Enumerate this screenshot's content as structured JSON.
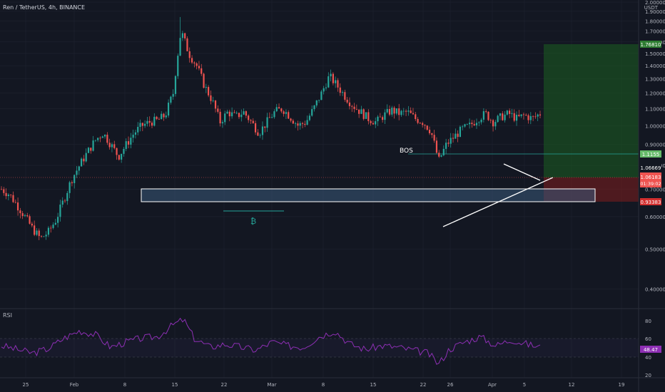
{
  "header": {
    "title": "Ren / TetherUS, 4h, BINANCE",
    "currency": "USDT"
  },
  "colors": {
    "background": "#131722",
    "grid": "#1f2330",
    "up": "#26a69a",
    "down": "#ef5350",
    "rsi": "#8e2fb5",
    "zone": "#5a7fa6",
    "target": "#1b5e20",
    "stop": "#7f1d1d"
  },
  "annotations": {
    "bos_label": "BOS",
    "bitcoin_symbol": "₿"
  },
  "rsi": {
    "label": "RSI",
    "ticks": [
      "80",
      "60",
      "40",
      "20"
    ],
    "current": "48.47"
  },
  "price_badges": {
    "target": "1.76810",
    "bos_level": "1.1155",
    "current_a": "1.06669",
    "current_b": "1.06183",
    "countdown": "01:39:02",
    "stop": "0.93383"
  },
  "chart_data": {
    "type": "candlestick",
    "title": "Ren / TetherUS, 4h, BINANCE",
    "ylabel": "USDT",
    "y_ticks": [
      "2.00000",
      "1.90000",
      "1.80000",
      "1.70000",
      "1.60000",
      "1.50000",
      "1.40000",
      "1.30000",
      "1.20000",
      "1.10000",
      "1.00000",
      "0.90000",
      "0.80000",
      "0.70000",
      "0.60000",
      "0.50000",
      "0.40000"
    ],
    "x_ticks": [
      "25",
      "Feb",
      "8",
      "15",
      "22",
      "Mar",
      "8",
      "15",
      "22",
      "26",
      "Apr",
      "5",
      "12",
      "19"
    ],
    "ylim": [
      0.4,
      2.0
    ],
    "scale": "log",
    "grid": true,
    "key_prices": {
      "high_spike": 1.84,
      "support_zone": [
        0.93,
        0.99
      ],
      "bos_level": 1.1155,
      "target": 1.7681,
      "entry": 1.0618,
      "stop": 0.9338,
      "last": 1.0618
    },
    "price_path": [
      [
        0,
        0.7
      ],
      [
        3,
        0.68
      ],
      [
        6,
        0.64
      ],
      [
        9,
        0.6
      ],
      [
        12,
        0.56
      ],
      [
        15,
        0.53
      ],
      [
        18,
        0.55
      ],
      [
        21,
        0.59
      ],
      [
        24,
        0.66
      ],
      [
        27,
        0.74
      ],
      [
        30,
        0.8
      ],
      [
        33,
        0.86
      ],
      [
        36,
        0.92
      ],
      [
        39,
        0.96
      ],
      [
        42,
        0.9
      ],
      [
        45,
        0.84
      ],
      [
        48,
        0.9
      ],
      [
        51,
        0.96
      ],
      [
        54,
        1.0
      ],
      [
        57,
        1.02
      ],
      [
        60,
        1.03
      ],
      [
        63,
        1.06
      ],
      [
        66,
        1.2
      ],
      [
        69,
        1.7
      ],
      [
        72,
        1.5
      ],
      [
        75,
        1.4
      ],
      [
        78,
        1.25
      ],
      [
        81,
        1.15
      ],
      [
        84,
        1.02
      ],
      [
        87,
        1.08
      ],
      [
        90,
        1.05
      ],
      [
        93,
        1.08
      ],
      [
        96,
        1.02
      ],
      [
        99,
        0.96
      ],
      [
        102,
        1.02
      ],
      [
        105,
        1.08
      ],
      [
        108,
        1.1
      ],
      [
        111,
        1.05
      ],
      [
        114,
        1.0
      ],
      [
        117,
        1.02
      ],
      [
        120,
        1.1
      ],
      [
        123,
        1.2
      ],
      [
        126,
        1.32
      ],
      [
        129,
        1.25
      ],
      [
        132,
        1.18
      ],
      [
        135,
        1.12
      ],
      [
        138,
        1.08
      ],
      [
        141,
        1.04
      ],
      [
        144,
        1.02
      ],
      [
        147,
        1.06
      ],
      [
        150,
        1.09
      ],
      [
        153,
        1.07
      ],
      [
        156,
        1.08
      ],
      [
        159,
        1.04
      ],
      [
        162,
        1.02
      ],
      [
        165,
        0.97
      ],
      [
        168,
        0.82
      ],
      [
        171,
        0.9
      ],
      [
        174,
        0.94
      ],
      [
        177,
        0.98
      ],
      [
        180,
        1.0
      ],
      [
        183,
        1.04
      ],
      [
        186,
        1.07
      ],
      [
        189,
        1.02
      ],
      [
        192,
        1.05
      ],
      [
        195,
        1.07
      ],
      [
        198,
        1.04
      ],
      [
        201,
        1.06
      ],
      [
        204,
        1.04
      ],
      [
        207,
        1.07
      ]
    ],
    "rsi_path": [
      [
        0,
        50
      ],
      [
        6,
        45
      ],
      [
        12,
        40
      ],
      [
        18,
        46
      ],
      [
        24,
        60
      ],
      [
        30,
        70
      ],
      [
        36,
        65
      ],
      [
        42,
        48
      ],
      [
        48,
        55
      ],
      [
        54,
        60
      ],
      [
        60,
        62
      ],
      [
        66,
        78
      ],
      [
        70,
        85
      ],
      [
        74,
        60
      ],
      [
        80,
        48
      ],
      [
        86,
        52
      ],
      [
        92,
        48
      ],
      [
        98,
        44
      ],
      [
        104,
        55
      ],
      [
        110,
        50
      ],
      [
        116,
        48
      ],
      [
        122,
        62
      ],
      [
        128,
        70
      ],
      [
        134,
        52
      ],
      [
        140,
        45
      ],
      [
        146,
        50
      ],
      [
        152,
        48
      ],
      [
        158,
        44
      ],
      [
        164,
        40
      ],
      [
        168,
        25
      ],
      [
        172,
        45
      ],
      [
        178,
        55
      ],
      [
        184,
        62
      ],
      [
        190,
        50
      ],
      [
        196,
        58
      ],
      [
        202,
        52
      ],
      [
        207,
        48
      ]
    ]
  }
}
